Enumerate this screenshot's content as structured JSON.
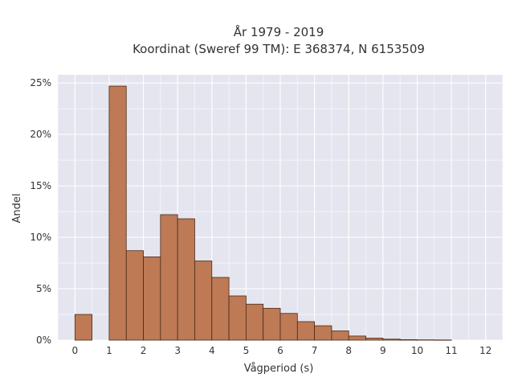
{
  "chart_data": {
    "type": "bar",
    "title": "År 1979 - 2019",
    "subtitle": "Koordinat (Sweref 99 TM): E 368374, N 6153509",
    "xlabel": "Vågperiod (s)",
    "ylabel": "Andel",
    "xlim": [
      -0.5,
      12.5
    ],
    "ylim": [
      0,
      25.8
    ],
    "xticks": [
      0,
      1,
      2,
      3,
      4,
      5,
      6,
      7,
      8,
      9,
      10,
      11,
      12
    ],
    "yticks": [
      0,
      5,
      10,
      15,
      20,
      25
    ],
    "ytick_labels": [
      "0%",
      "5%",
      "10%",
      "15%",
      "20%",
      "25%"
    ],
    "bin_width": 0.5,
    "bins": [
      {
        "x": 0.0,
        "value": 2.5
      },
      {
        "x": 1.0,
        "value": 24.7
      },
      {
        "x": 1.5,
        "value": 8.7
      },
      {
        "x": 2.0,
        "value": 8.1
      },
      {
        "x": 2.5,
        "value": 12.2
      },
      {
        "x": 3.0,
        "value": 11.8
      },
      {
        "x": 3.5,
        "value": 7.7
      },
      {
        "x": 4.0,
        "value": 6.1
      },
      {
        "x": 4.5,
        "value": 4.3
      },
      {
        "x": 5.0,
        "value": 3.5
      },
      {
        "x": 5.5,
        "value": 3.1
      },
      {
        "x": 6.0,
        "value": 2.6
      },
      {
        "x": 6.5,
        "value": 1.8
      },
      {
        "x": 7.0,
        "value": 1.4
      },
      {
        "x": 7.5,
        "value": 0.9
      },
      {
        "x": 8.0,
        "value": 0.4
      },
      {
        "x": 8.5,
        "value": 0.2
      },
      {
        "x": 9.0,
        "value": 0.1
      },
      {
        "x": 9.5,
        "value": 0.05
      },
      {
        "x": 10.0,
        "value": 0.03
      },
      {
        "x": 10.5,
        "value": 0.02
      }
    ],
    "grid": true,
    "colors": {
      "bar": "#bd7a55",
      "bar_edge": "#4a2a18",
      "plot_bg": "#e5e5ef",
      "grid": "#ffffff"
    }
  }
}
